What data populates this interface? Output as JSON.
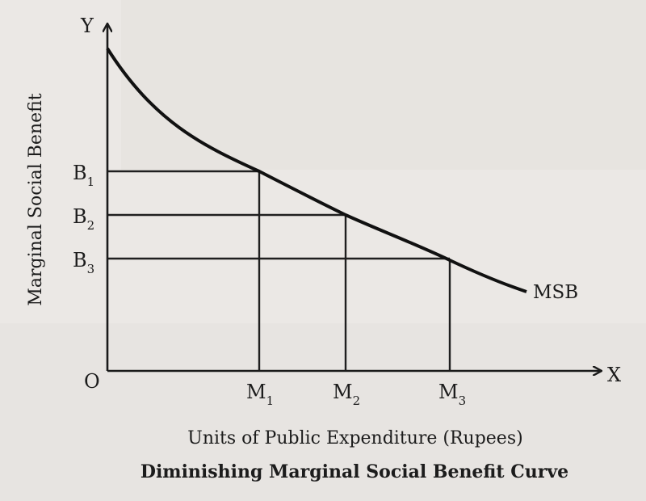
{
  "diagram": {
    "origin_label": "O",
    "x_axis_letter": "X",
    "y_axis_letter": "Y",
    "x_axis_title": "Units of Public Expenditure (Rupees)",
    "y_axis_title": "Marginal Social Benefit",
    "curve_label": "MSB",
    "caption": "Diminishing Marginal Social Benefit Curve",
    "benefit_levels": [
      {
        "letter": "B",
        "sub": "1"
      },
      {
        "letter": "B",
        "sub": "2"
      },
      {
        "letter": "B",
        "sub": "3"
      }
    ],
    "expenditure_levels": [
      {
        "letter": "M",
        "sub": "1"
      },
      {
        "letter": "M",
        "sub": "2"
      },
      {
        "letter": "M",
        "sub": "3"
      }
    ]
  }
}
